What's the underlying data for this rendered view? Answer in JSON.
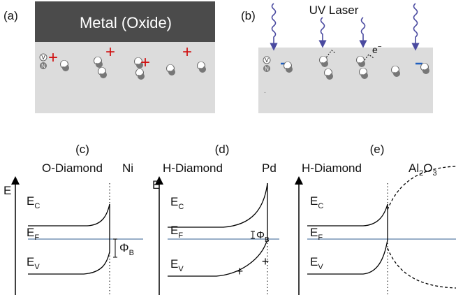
{
  "panel_a": {
    "label": "(a)",
    "layer": "Metal (Oxide)",
    "vacancy": "V",
    "nitrogen": "N",
    "charges": [
      "+",
      "+",
      "+",
      "+"
    ]
  },
  "panel_b": {
    "label": "(b)",
    "laser": "UV Laser",
    "vacancy": "V",
    "nitrogen": "N",
    "electron": "e",
    "electron_charge": "−"
  },
  "bands": [
    {
      "label": "(c)",
      "left": "O-Diamond",
      "right": [
        "Ni"
      ],
      "axis": "E",
      "levels": [
        [
          "E",
          "C"
        ],
        [
          "E",
          "F"
        ],
        [
          "E",
          "V"
        ]
      ],
      "barrier": [
        "Φ",
        "B"
      ]
    },
    {
      "label": "(d)",
      "left": "H-Diamond",
      "right": [
        "Pd"
      ],
      "axis": "E",
      "levels": [
        [
          "E",
          "C"
        ],
        [
          "E",
          "F"
        ],
        [
          "E",
          "V"
        ]
      ],
      "barrier": [
        "Φ",
        "B"
      ],
      "charges": [
        "+",
        "+"
      ]
    },
    {
      "label": "(e)",
      "left": "H-Diamond",
      "right": [
        "Al",
        "2",
        "O",
        "3"
      ],
      "levels": [
        [
          "E",
          "C"
        ],
        [
          "E",
          "F"
        ],
        [
          "E",
          "V"
        ]
      ]
    }
  ]
}
